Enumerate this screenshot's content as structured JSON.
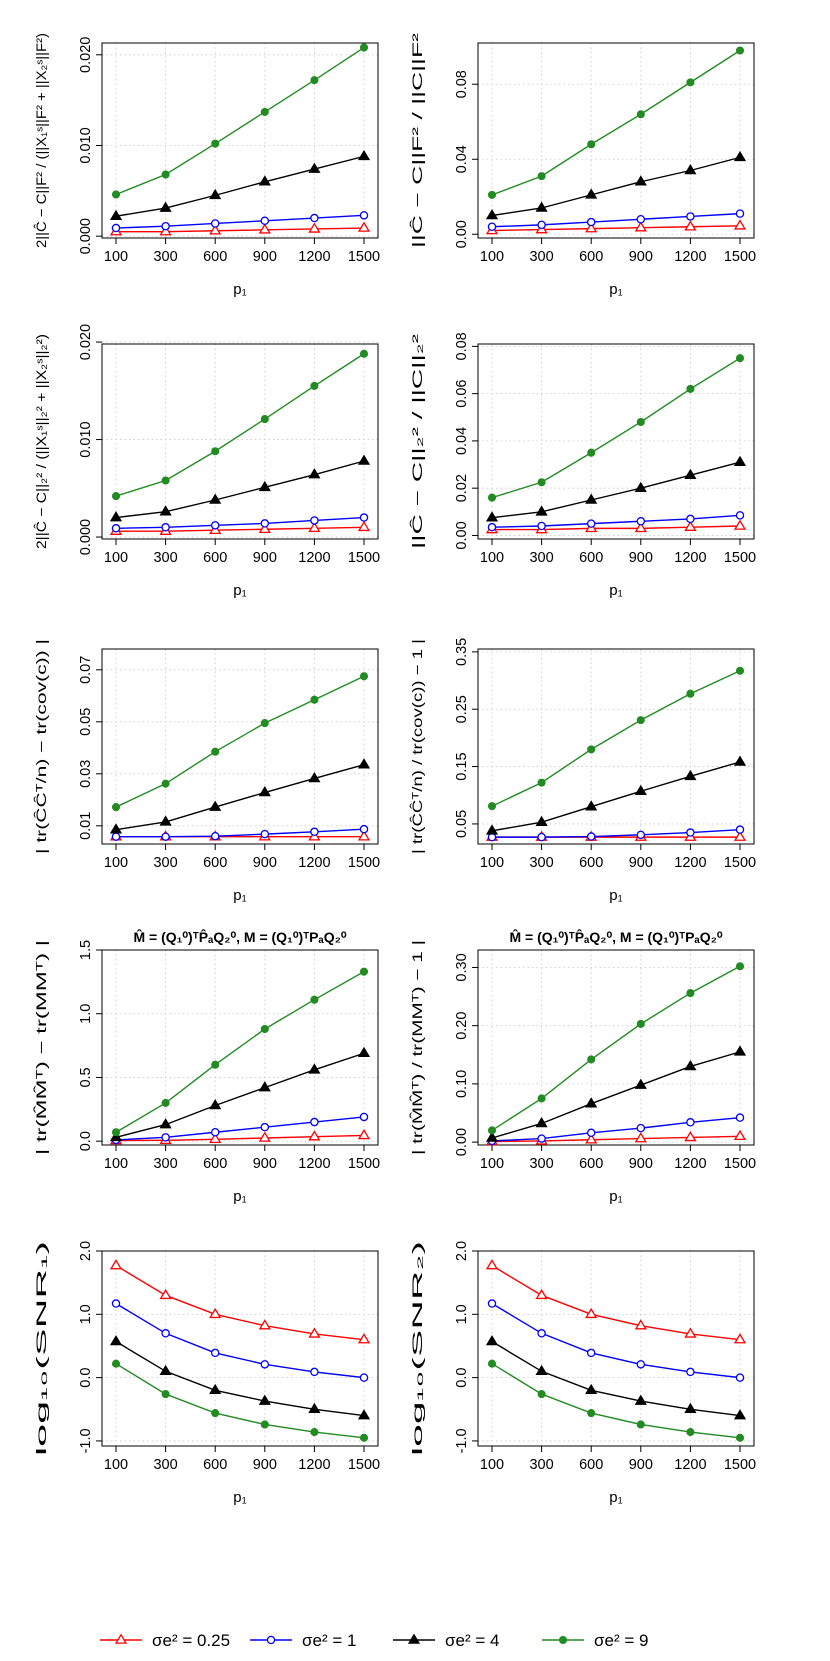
{
  "chart_data": [
    {
      "type": "line",
      "ylabel": "2||Ĉ − C||F² / (||X₁ˢ||F² + ||X₂ˢ||F²)",
      "xlabel": "p₁",
      "title": "",
      "ylim": [
        -0.0002,
        0.0213
      ],
      "yticks": [
        "0.000",
        "0.010",
        "0.020"
      ],
      "ytick_values": [
        0,
        0.01,
        0.02
      ],
      "series": [
        {
          "name": "σe² = 0.25",
          "values": [
            0.0005,
            0.0005,
            0.0006,
            0.0007,
            0.0008,
            0.0009
          ]
        },
        {
          "name": "σe² = 1",
          "values": [
            0.0009,
            0.0011,
            0.0014,
            0.0017,
            0.002,
            0.0023
          ]
        },
        {
          "name": "σe² = 4",
          "values": [
            0.0022,
            0.0031,
            0.0045,
            0.006,
            0.0074,
            0.0088
          ]
        },
        {
          "name": "σe² = 9",
          "values": [
            0.0046,
            0.0068,
            0.0102,
            0.0137,
            0.0172,
            0.0208
          ]
        }
      ]
    },
    {
      "type": "line",
      "ylabel": "||Ĉ − C||F² / ||C||F²",
      "xlabel": "p₁",
      "title": "",
      "ylim": [
        -0.002,
        0.102
      ],
      "yticks": [
        "0.00",
        "0.04",
        "0.08"
      ],
      "ytick_values": [
        0,
        0.04,
        0.08
      ],
      "series": [
        {
          "name": "σe² = 0.25",
          "values": [
            0.002,
            0.0025,
            0.003,
            0.0035,
            0.004,
            0.0045
          ]
        },
        {
          "name": "σe² = 1",
          "values": [
            0.004,
            0.005,
            0.0065,
            0.008,
            0.0095,
            0.011
          ]
        },
        {
          "name": "σe² = 4",
          "values": [
            0.01,
            0.014,
            0.021,
            0.028,
            0.034,
            0.041
          ]
        },
        {
          "name": "σe² = 9",
          "values": [
            0.021,
            0.031,
            0.048,
            0.064,
            0.081,
            0.098
          ]
        }
      ]
    },
    {
      "type": "line",
      "ylabel": "2||Ĉ − C||₂² / (||X₁ˢ||₂² + ||X₂ˢ||₂²)",
      "xlabel": "p₁",
      "title": "",
      "ylim": [
        -0.0002,
        0.0198
      ],
      "yticks": [
        "0.000",
        "0.010",
        "0.020"
      ],
      "ytick_values": [
        0,
        0.01,
        0.02
      ],
      "series": [
        {
          "name": "σe² = 0.25",
          "values": [
            0.0006,
            0.0006,
            0.0007,
            0.0008,
            0.0009,
            0.001
          ]
        },
        {
          "name": "σe² = 1",
          "values": [
            0.0009,
            0.001,
            0.0012,
            0.0014,
            0.0017,
            0.002
          ]
        },
        {
          "name": "σe² = 4",
          "values": [
            0.002,
            0.0026,
            0.0038,
            0.0051,
            0.0064,
            0.0078
          ]
        },
        {
          "name": "σe² = 9",
          "values": [
            0.0042,
            0.0058,
            0.0088,
            0.0121,
            0.0155,
            0.0188
          ]
        }
      ]
    },
    {
      "type": "line",
      "ylabel": "||Ĉ − C||₂² / ||C||₂²",
      "xlabel": "p₁",
      "title": "",
      "ylim": [
        -0.0015,
        0.081
      ],
      "yticks": [
        "0.00",
        "0.02",
        "0.04",
        "0.06",
        "0.08"
      ],
      "ytick_values": [
        0,
        0.02,
        0.04,
        0.06,
        0.08
      ],
      "series": [
        {
          "name": "σe² = 0.25",
          "values": [
            0.0025,
            0.0025,
            0.003,
            0.003,
            0.0035,
            0.004
          ]
        },
        {
          "name": "σe² = 1",
          "values": [
            0.0035,
            0.004,
            0.005,
            0.006,
            0.007,
            0.0085
          ]
        },
        {
          "name": "σe² = 4",
          "values": [
            0.0075,
            0.01,
            0.015,
            0.02,
            0.0255,
            0.031
          ]
        },
        {
          "name": "σe² = 9",
          "values": [
            0.016,
            0.0225,
            0.035,
            0.048,
            0.062,
            0.075
          ]
        }
      ]
    },
    {
      "type": "line",
      "ylabel": "| tr(ĈĈᵀ/n) − tr(cov(c)) |",
      "xlabel": "p₁",
      "title": "",
      "ylim": [
        0.003,
        0.078
      ],
      "yticks": [
        "0.01",
        "0.03",
        "0.05",
        "0.07"
      ],
      "ytick_values": [
        0.01,
        0.03,
        0.05,
        0.07
      ],
      "series": [
        {
          "name": "σe² = 0.25",
          "values": [
            0.0058,
            0.0058,
            0.0058,
            0.0058,
            0.0058,
            0.0058
          ]
        },
        {
          "name": "σe² = 1",
          "values": [
            0.0058,
            0.0058,
            0.006,
            0.0068,
            0.0077,
            0.0087
          ]
        },
        {
          "name": "σe² = 4",
          "values": [
            0.0085,
            0.0115,
            0.0172,
            0.0228,
            0.0282,
            0.0335
          ]
        },
        {
          "name": "σe² = 9",
          "values": [
            0.0172,
            0.0262,
            0.0385,
            0.0495,
            0.0585,
            0.0675
          ]
        }
      ]
    },
    {
      "type": "line",
      "ylabel": "| tr(ĈĈᵀ/n) / tr(cov(c)) − 1 |",
      "xlabel": "p₁",
      "title": "",
      "ylim": [
        0.015,
        0.355
      ],
      "yticks": [
        "0.05",
        "0.15",
        "0.25",
        "0.35"
      ],
      "ytick_values": [
        0.05,
        0.15,
        0.25,
        0.35
      ],
      "series": [
        {
          "name": "σe² = 0.25",
          "values": [
            0.027,
            0.027,
            0.027,
            0.027,
            0.027,
            0.027
          ]
        },
        {
          "name": "σe² = 1",
          "values": [
            0.027,
            0.027,
            0.028,
            0.031,
            0.035,
            0.04
          ]
        },
        {
          "name": "σe² = 4",
          "values": [
            0.038,
            0.053,
            0.08,
            0.107,
            0.133,
            0.158
          ]
        },
        {
          "name": "σe² = 9",
          "values": [
            0.081,
            0.122,
            0.18,
            0.231,
            0.277,
            0.317
          ]
        }
      ]
    },
    {
      "type": "line",
      "title": "M̂ = (Q₁⁰)ᵀP̂ₐQ₂⁰,  M = (Q₁⁰)ᵀPₐQ₂⁰",
      "ylabel": "| tr(M̂M̂ᵀ) − tr(MMᵀ) |",
      "xlabel": "p₁",
      "ylim": [
        -0.03,
        1.5
      ],
      "yticks": [
        "0.0",
        "0.5",
        "1.0",
        "1.5"
      ],
      "ytick_values": [
        0,
        0.5,
        1.0,
        1.5
      ],
      "series": [
        {
          "name": "σe² = 0.25",
          "values": [
            0.005,
            0.007,
            0.015,
            0.025,
            0.035,
            0.045
          ]
        },
        {
          "name": "σe² = 1",
          "values": [
            0.01,
            0.03,
            0.07,
            0.11,
            0.15,
            0.19
          ]
        },
        {
          "name": "σe² = 4",
          "values": [
            0.03,
            0.13,
            0.28,
            0.42,
            0.56,
            0.69
          ]
        },
        {
          "name": "σe² = 9",
          "values": [
            0.07,
            0.3,
            0.6,
            0.88,
            1.11,
            1.33
          ]
        }
      ]
    },
    {
      "type": "line",
      "title": "M̂ = (Q₁⁰)ᵀP̂ₐQ₂⁰,  M = (Q₁⁰)ᵀPₐQ₂⁰",
      "ylabel": "| tr(M̂M̂ᵀ) / tr(MMᵀ) − 1 |",
      "xlabel": "p₁",
      "ylim": [
        -0.005,
        0.33
      ],
      "yticks": [
        "0.00",
        "0.10",
        "0.20",
        "0.30"
      ],
      "ytick_values": [
        0,
        0.1,
        0.2,
        0.3
      ],
      "series": [
        {
          "name": "σe² = 0.25",
          "values": [
            0.001,
            0.002,
            0.004,
            0.006,
            0.008,
            0.01
          ]
        },
        {
          "name": "σe² = 1",
          "values": [
            0.002,
            0.006,
            0.016,
            0.024,
            0.034,
            0.042
          ]
        },
        {
          "name": "σe² = 4",
          "values": [
            0.007,
            0.032,
            0.066,
            0.098,
            0.13,
            0.155
          ]
        },
        {
          "name": "σe² = 9",
          "values": [
            0.02,
            0.075,
            0.142,
            0.203,
            0.256,
            0.302
          ]
        }
      ]
    },
    {
      "type": "line",
      "ylabel": "log₁₀(SNR₁)",
      "xlabel": "p₁",
      "title": "",
      "ylim": [
        -1.08,
        2.0
      ],
      "yticks": [
        "-1.0",
        "0.0",
        "1.0",
        "2.0"
      ],
      "ytick_values": [
        -1,
        0,
        1,
        2
      ],
      "series": [
        {
          "name": "σe² = 0.25",
          "values": [
            1.77,
            1.3,
            1.0,
            0.82,
            0.69,
            0.6
          ]
        },
        {
          "name": "σe² = 1",
          "values": [
            1.17,
            0.7,
            0.39,
            0.21,
            0.09,
            0.0
          ]
        },
        {
          "name": "σe² = 4",
          "values": [
            0.57,
            0.1,
            -0.2,
            -0.37,
            -0.5,
            -0.6
          ]
        },
        {
          "name": "σe² = 9",
          "values": [
            0.22,
            -0.26,
            -0.56,
            -0.74,
            -0.86,
            -0.95
          ]
        }
      ]
    },
    {
      "type": "line",
      "ylabel": "log₁₀(SNR₂)",
      "xlabel": "p₁",
      "title": "",
      "ylim": [
        -1.08,
        2.0
      ],
      "yticks": [
        "-1.0",
        "0.0",
        "1.0",
        "2.0"
      ],
      "ytick_values": [
        -1,
        0,
        1,
        2
      ],
      "series": [
        {
          "name": "σe² = 0.25",
          "values": [
            1.77,
            1.3,
            1.0,
            0.82,
            0.69,
            0.6
          ]
        },
        {
          "name": "σe² = 1",
          "values": [
            1.17,
            0.7,
            0.39,
            0.21,
            0.09,
            0.0
          ]
        },
        {
          "name": "σe² = 4",
          "values": [
            0.57,
            0.1,
            -0.2,
            -0.37,
            -0.5,
            -0.6
          ]
        },
        {
          "name": "σe² = 9",
          "values": [
            0.22,
            -0.26,
            -0.56,
            -0.74,
            -0.86,
            -0.95
          ]
        }
      ]
    }
  ],
  "x_categories": [
    "100",
    "300",
    "600",
    "900",
    "1200",
    "1500"
  ],
  "legend": {
    "placement": "bottom",
    "entries": [
      {
        "label": "σe² = 0.25",
        "color": "#ff0000",
        "marker": "open-triangle"
      },
      {
        "label": "σe² = 1",
        "color": "#0000ff",
        "marker": "open-circle"
      },
      {
        "label": "σe² = 4",
        "color": "#000000",
        "marker": "filled-triangle"
      },
      {
        "label": "σe² = 9",
        "color": "#228b22",
        "marker": "filled-circle"
      }
    ]
  },
  "grid": true
}
